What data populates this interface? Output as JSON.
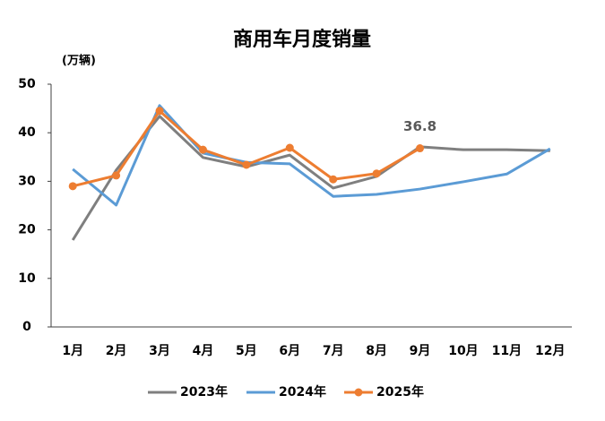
{
  "chart_data": {
    "type": "line",
    "title": "商用车月度销量",
    "y_label": "(万辆)",
    "categories": [
      "1月",
      "2月",
      "3月",
      "4月",
      "5月",
      "6月",
      "7月",
      "8月",
      "9月",
      "10月",
      "11月",
      "12月"
    ],
    "series": [
      {
        "name": "2023年",
        "color": "#7f7f7f",
        "marker": false,
        "values": [
          17.9,
          32.3,
          43.4,
          34.9,
          33.0,
          35.4,
          28.6,
          31.0,
          37.1,
          36.5,
          36.5,
          36.3
        ]
      },
      {
        "name": "2024年",
        "color": "#5b9bd5",
        "marker": false,
        "values": [
          32.5,
          25.1,
          45.6,
          35.8,
          33.9,
          33.6,
          26.9,
          27.3,
          28.4,
          29.9,
          31.5,
          36.7
        ]
      },
      {
        "name": "2025年",
        "color": "#ed7d31",
        "marker": true,
        "values": [
          29.0,
          31.2,
          44.5,
          36.5,
          33.4,
          36.9,
          30.4,
          31.6,
          36.8,
          null,
          null,
          null
        ],
        "value_labels": [
          null,
          null,
          null,
          null,
          null,
          null,
          null,
          null,
          "36.8",
          null,
          null,
          null
        ]
      }
    ],
    "ylim": [
      0,
      50
    ],
    "yticks": [
      0,
      10,
      20,
      30,
      40,
      50
    ],
    "grid": false,
    "legend": "bottom"
  }
}
